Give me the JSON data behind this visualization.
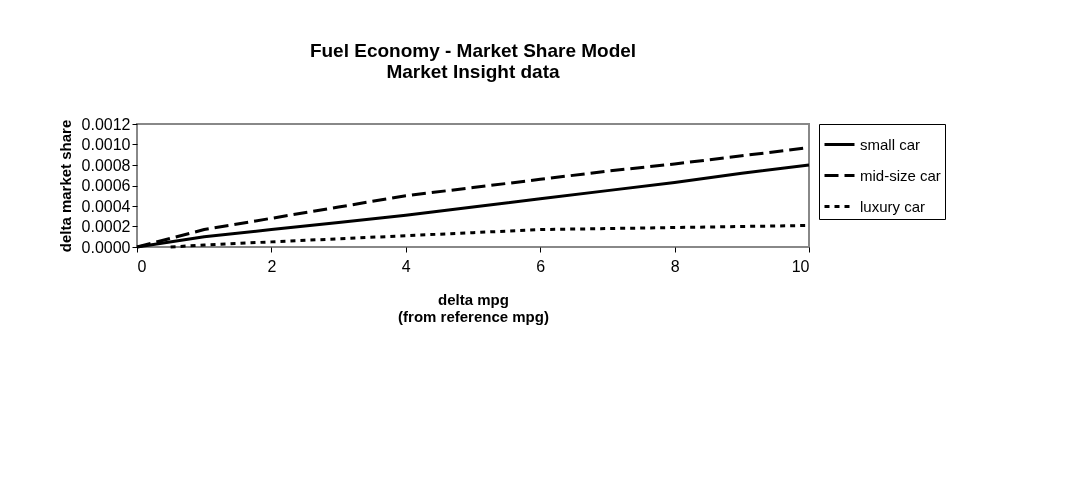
{
  "chart_data": {
    "type": "line",
    "title": [
      "Fuel Economy - Market Share Model",
      "Market Insight data"
    ],
    "xlabel": [
      "delta mpg",
      "(from reference mpg)"
    ],
    "ylabel": "delta market share",
    "x": [
      0,
      1,
      2,
      3,
      4,
      5,
      6,
      7,
      8,
      9,
      10
    ],
    "series": [
      {
        "name": "small car",
        "color": "#000000",
        "line_style": "solid",
        "values": [
          0,
          0.0001,
          0.00017,
          0.00024,
          0.00031,
          0.00039,
          0.00047,
          0.00055,
          0.00063,
          0.00072,
          0.0008
        ]
      },
      {
        "name": "mid-size car",
        "color": "#000000",
        "line_style": "dashed",
        "values": [
          0,
          0.00017,
          0.00028,
          0.00039,
          0.0005,
          0.00058,
          0.00066,
          0.00074,
          0.00081,
          0.00089,
          0.00097
        ]
      },
      {
        "name": "luxury car",
        "color": "#000000",
        "line_style": "dotted",
        "x": [
          0.5,
          1,
          2,
          3,
          4,
          5,
          6,
          7,
          8,
          9,
          10
        ],
        "values": [
          0,
          2e-05,
          5e-05,
          8e-05,
          0.00011,
          0.00014,
          0.00017,
          0.00018,
          0.00019,
          0.0002,
          0.00021
        ]
      }
    ],
    "xlim": [
      0,
      10
    ],
    "xticks": [
      0,
      2,
      4,
      6,
      8,
      10
    ],
    "ylim": [
      0,
      0.0012
    ],
    "yticks": [
      {
        "value": 0,
        "label": "0.0000"
      },
      {
        "value": 0.0002,
        "label": "0.0002"
      },
      {
        "value": 0.0004,
        "label": "0.0004"
      },
      {
        "value": 0.0006,
        "label": "0.0006"
      },
      {
        "value": 0.0008,
        "label": "0.0008"
      },
      {
        "value": 0.001,
        "label": "0.0010"
      },
      {
        "value": 0.0012,
        "label": "0.0012"
      }
    ],
    "grid": false,
    "legend": "right",
    "marker": "none"
  }
}
